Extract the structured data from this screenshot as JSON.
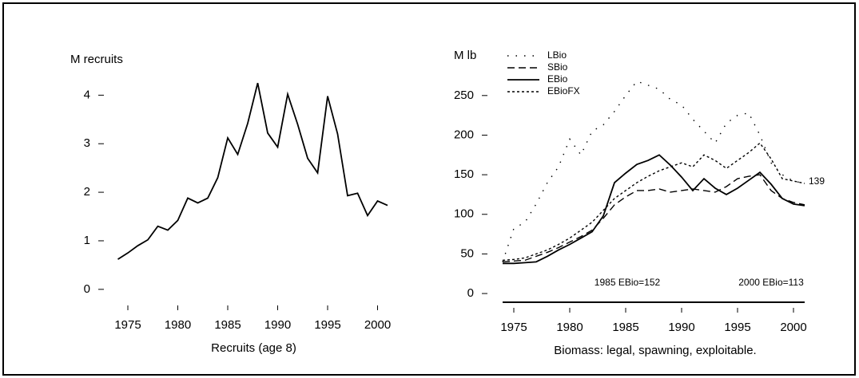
{
  "chart_data": [
    {
      "type": "line",
      "ylabel": "M recruits",
      "xlabel": "Recruits (age 8)",
      "x": [
        1974,
        1975,
        1976,
        1977,
        1978,
        1979,
        1980,
        1981,
        1982,
        1983,
        1984,
        1985,
        1986,
        1987,
        1988,
        1989,
        1990,
        1991,
        1992,
        1993,
        1994,
        1995,
        1996,
        1997,
        1998,
        1999,
        2000,
        2001
      ],
      "series": [
        {
          "name": "Recruits",
          "color": "#000000",
          "style": "solid",
          "values": [
            0.62,
            0.75,
            0.9,
            1.02,
            1.3,
            1.22,
            1.42,
            1.88,
            1.78,
            1.88,
            2.3,
            3.12,
            2.78,
            3.42,
            4.25,
            3.22,
            2.93,
            4.02,
            3.4,
            2.7,
            2.4,
            3.98,
            3.2,
            1.93,
            1.98,
            1.52,
            1.82,
            1.73
          ]
        }
      ],
      "xlim": [
        1973,
        2003
      ],
      "xticks": [
        1975,
        1980,
        1985,
        1990,
        1995,
        2000
      ],
      "ylim": [
        -0.2,
        4.4
      ],
      "yticks": [
        0,
        1,
        2,
        3,
        4
      ],
      "legend": false
    },
    {
      "type": "line",
      "ylabel": "M lb",
      "xlabel": "Biomass: legal, spawning, exploitable.",
      "x": [
        1974,
        1975,
        1976,
        1977,
        1978,
        1979,
        1980,
        1981,
        1982,
        1983,
        1984,
        1985,
        1986,
        1987,
        1988,
        1989,
        1990,
        1991,
        1992,
        1993,
        1994,
        1995,
        1996,
        1997,
        1998,
        1999,
        2000,
        2001
      ],
      "series": [
        {
          "name": "LBio",
          "color": "#000000",
          "style": "dotted",
          "values": [
            40,
            82,
            90,
            113,
            140,
            160,
            195,
            175,
            205,
            213,
            230,
            250,
            268,
            263,
            258,
            245,
            238,
            220,
            205,
            190,
            215,
            225,
            228,
            200,
            165,
            150,
            142,
            139
          ]
        },
        {
          "name": "SBio",
          "color": "#000000",
          "style": "dashed",
          "values": [
            40,
            41,
            42,
            47,
            52,
            58,
            65,
            72,
            80,
            95,
            112,
            122,
            130,
            130,
            132,
            128,
            130,
            132,
            130,
            128,
            135,
            145,
            148,
            150,
            130,
            120,
            115,
            112
          ]
        },
        {
          "name": "EBio",
          "color": "#000000",
          "style": "solid",
          "values": [
            38,
            38,
            39,
            40,
            47,
            55,
            62,
            70,
            78,
            98,
            140,
            152,
            163,
            168,
            175,
            162,
            147,
            130,
            145,
            133,
            125,
            133,
            143,
            153,
            138,
            120,
            113,
            111
          ]
        },
        {
          "name": "EBioFX",
          "color": "#000000",
          "style": "fine-dashed",
          "values": [
            42,
            43,
            45,
            50,
            55,
            62,
            70,
            80,
            90,
            105,
            120,
            130,
            140,
            148,
            155,
            160,
            165,
            160,
            175,
            168,
            158,
            168,
            178,
            190,
            170,
            145,
            142,
            139
          ]
        }
      ],
      "annotations": [
        "139",
        "1985 EBio=152",
        "2000 EBio=113"
      ],
      "xlim": [
        1973,
        2003
      ],
      "xticks": [
        1975,
        1980,
        1985,
        1990,
        1995,
        2000
      ],
      "ylim": [
        -10,
        280
      ],
      "yticks": [
        0,
        50,
        100,
        150,
        200,
        250
      ],
      "legend": "upper left"
    }
  ]
}
